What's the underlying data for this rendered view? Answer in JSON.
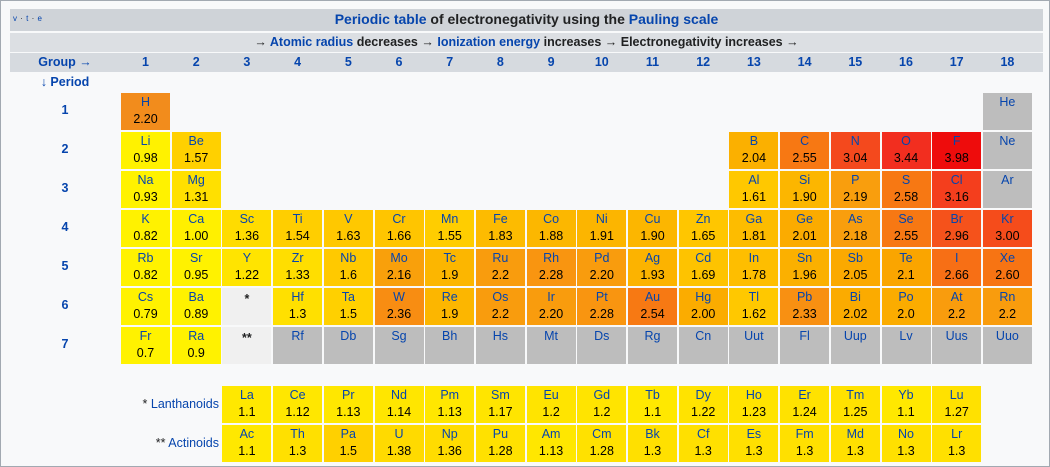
{
  "vte": {
    "v": "v",
    "t": "t",
    "e": "e"
  },
  "title": {
    "link1": "Periodic table",
    "mid": " of electronegativity using the ",
    "link2": "Pauling scale"
  },
  "trend": {
    "arrow1": "→ ",
    "link1": "Atomic radius",
    "t1": " decreases → ",
    "link2": "Ionization energy",
    "t2": " increases → Electronegativity increases →"
  },
  "group_label": "Group →",
  "period_label": "↓ Period",
  "groups": [
    "1",
    "2",
    "3",
    "4",
    "5",
    "6",
    "7",
    "8",
    "9",
    "10",
    "11",
    "12",
    "13",
    "14",
    "15",
    "16",
    "17",
    "18"
  ],
  "periods": [
    "1",
    "2",
    "3",
    "4",
    "5",
    "6",
    "7"
  ],
  "colors": {
    "none": "#b8b8b8",
    "marker": "#f0f0f0"
  },
  "elements": [
    {
      "s": "H",
      "en": "2.20",
      "p": 1,
      "g": 1,
      "c": "#f28c1c"
    },
    {
      "s": "He",
      "en": "",
      "p": 1,
      "g": 18,
      "c": "#bdbdbd"
    },
    {
      "s": "Li",
      "en": "0.98",
      "p": 2,
      "g": 1,
      "c": "#fff200"
    },
    {
      "s": "Be",
      "en": "1.57",
      "p": 2,
      "g": 2,
      "c": "#ffd000"
    },
    {
      "s": "B",
      "en": "2.04",
      "p": 2,
      "g": 13,
      "c": "#fbb000"
    },
    {
      "s": "C",
      "en": "2.55",
      "p": 2,
      "g": 14,
      "c": "#f77813"
    },
    {
      "s": "N",
      "en": "3.04",
      "p": 2,
      "g": 15,
      "c": "#f4491d"
    },
    {
      "s": "O",
      "en": "3.44",
      "p": 2,
      "g": 16,
      "c": "#f22e1f"
    },
    {
      "s": "F",
      "en": "3.98",
      "p": 2,
      "g": 17,
      "c": "#ee0c0c"
    },
    {
      "s": "Ne",
      "en": "",
      "p": 2,
      "g": 18,
      "c": "#bdbdbd"
    },
    {
      "s": "Na",
      "en": "0.93",
      "p": 3,
      "g": 1,
      "c": "#fff200"
    },
    {
      "s": "Mg",
      "en": "1.31",
      "p": 3,
      "g": 2,
      "c": "#ffe000"
    },
    {
      "s": "Al",
      "en": "1.61",
      "p": 3,
      "g": 13,
      "c": "#ffc800"
    },
    {
      "s": "Si",
      "en": "1.90",
      "p": 3,
      "g": 14,
      "c": "#fcb600"
    },
    {
      "s": "P",
      "en": "2.19",
      "p": 3,
      "g": 15,
      "c": "#f99e0d"
    },
    {
      "s": "S",
      "en": "2.58",
      "p": 3,
      "g": 16,
      "c": "#f77813"
    },
    {
      "s": "Cl",
      "en": "3.16",
      "p": 3,
      "g": 17,
      "c": "#f43e1d"
    },
    {
      "s": "Ar",
      "en": "",
      "p": 3,
      "g": 18,
      "c": "#bdbdbd"
    },
    {
      "s": "K",
      "en": "0.82",
      "p": 4,
      "g": 1,
      "c": "#fff200"
    },
    {
      "s": "Ca",
      "en": "1.00",
      "p": 4,
      "g": 2,
      "c": "#fff000"
    },
    {
      "s": "Sc",
      "en": "1.36",
      "p": 4,
      "g": 3,
      "c": "#ffdc00"
    },
    {
      "s": "Ti",
      "en": "1.54",
      "p": 4,
      "g": 4,
      "c": "#ffce00"
    },
    {
      "s": "V",
      "en": "1.63",
      "p": 4,
      "g": 5,
      "c": "#ffc800"
    },
    {
      "s": "Cr",
      "en": "1.66",
      "p": 4,
      "g": 6,
      "c": "#ffc500"
    },
    {
      "s": "Mn",
      "en": "1.55",
      "p": 4,
      "g": 7,
      "c": "#ffcd00"
    },
    {
      "s": "Fe",
      "en": "1.83",
      "p": 4,
      "g": 8,
      "c": "#fdbb00"
    },
    {
      "s": "Co",
      "en": "1.88",
      "p": 4,
      "g": 9,
      "c": "#fcb700"
    },
    {
      "s": "Ni",
      "en": "1.91",
      "p": 4,
      "g": 10,
      "c": "#fcb500"
    },
    {
      "s": "Cu",
      "en": "1.90",
      "p": 4,
      "g": 11,
      "c": "#fcb600"
    },
    {
      "s": "Zn",
      "en": "1.65",
      "p": 4,
      "g": 12,
      "c": "#ffc600"
    },
    {
      "s": "Ga",
      "en": "1.81",
      "p": 4,
      "g": 13,
      "c": "#fdbc00"
    },
    {
      "s": "Ge",
      "en": "2.01",
      "p": 4,
      "g": 14,
      "c": "#fbab00"
    },
    {
      "s": "As",
      "en": "2.18",
      "p": 4,
      "g": 15,
      "c": "#f99e0d"
    },
    {
      "s": "Se",
      "en": "2.55",
      "p": 4,
      "g": 16,
      "c": "#f77813"
    },
    {
      "s": "Br",
      "en": "2.96",
      "p": 4,
      "g": 17,
      "c": "#f5521b"
    },
    {
      "s": "Kr",
      "en": "3.00",
      "p": 4,
      "g": 18,
      "c": "#f54c1b"
    },
    {
      "s": "Rb",
      "en": "0.82",
      "p": 5,
      "g": 1,
      "c": "#fff200"
    },
    {
      "s": "Sr",
      "en": "0.95",
      "p": 5,
      "g": 2,
      "c": "#fff200"
    },
    {
      "s": "Y",
      "en": "1.22",
      "p": 5,
      "g": 3,
      "c": "#ffe400"
    },
    {
      "s": "Zr",
      "en": "1.33",
      "p": 5,
      "g": 4,
      "c": "#ffde00"
    },
    {
      "s": "Nb",
      "en": "1.6",
      "p": 5,
      "g": 5,
      "c": "#ffc900"
    },
    {
      "s": "Mo",
      "en": "2.16",
      "p": 5,
      "g": 6,
      "c": "#f9a00b"
    },
    {
      "s": "Tc",
      "en": "1.9",
      "p": 5,
      "g": 7,
      "c": "#fcb600"
    },
    {
      "s": "Ru",
      "en": "2.2",
      "p": 5,
      "g": 8,
      "c": "#f99c0d"
    },
    {
      "s": "Rh",
      "en": "2.28",
      "p": 5,
      "g": 9,
      "c": "#f99510"
    },
    {
      "s": "Pd",
      "en": "2.20",
      "p": 5,
      "g": 10,
      "c": "#f99c0d"
    },
    {
      "s": "Ag",
      "en": "1.93",
      "p": 5,
      "g": 11,
      "c": "#fcb300"
    },
    {
      "s": "Cd",
      "en": "1.69",
      "p": 5,
      "g": 12,
      "c": "#fec300"
    },
    {
      "s": "In",
      "en": "1.78",
      "p": 5,
      "g": 13,
      "c": "#febe00"
    },
    {
      "s": "Sn",
      "en": "1.96",
      "p": 5,
      "g": 14,
      "c": "#fbb000"
    },
    {
      "s": "Sb",
      "en": "2.05",
      "p": 5,
      "g": 15,
      "c": "#fba900"
    },
    {
      "s": "Te",
      "en": "2.1",
      "p": 5,
      "g": 16,
      "c": "#faa500"
    },
    {
      "s": "I",
      "en": "2.66",
      "p": 5,
      "g": 17,
      "c": "#f76f15"
    },
    {
      "s": "Xe",
      "en": "2.60",
      "p": 5,
      "g": 18,
      "c": "#f77413"
    },
    {
      "s": "Cs",
      "en": "0.79",
      "p": 6,
      "g": 1,
      "c": "#fff200"
    },
    {
      "s": "Ba",
      "en": "0.89",
      "p": 6,
      "g": 2,
      "c": "#fff200"
    },
    {
      "s": "*",
      "en": "",
      "p": 6,
      "g": 3,
      "c": "marker"
    },
    {
      "s": "Hf",
      "en": "1.3",
      "p": 6,
      "g": 4,
      "c": "#ffe000"
    },
    {
      "s": "Ta",
      "en": "1.5",
      "p": 6,
      "g": 5,
      "c": "#ffd000"
    },
    {
      "s": "W",
      "en": "2.36",
      "p": 6,
      "g": 6,
      "c": "#f88d12"
    },
    {
      "s": "Re",
      "en": "1.9",
      "p": 6,
      "g": 7,
      "c": "#fcb600"
    },
    {
      "s": "Os",
      "en": "2.2",
      "p": 6,
      "g": 8,
      "c": "#f99c0d"
    },
    {
      "s": "Ir",
      "en": "2.20",
      "p": 6,
      "g": 9,
      "c": "#f99c0d"
    },
    {
      "s": "Pt",
      "en": "2.28",
      "p": 6,
      "g": 10,
      "c": "#f99510"
    },
    {
      "s": "Au",
      "en": "2.54",
      "p": 6,
      "g": 11,
      "c": "#f77913"
    },
    {
      "s": "Hg",
      "en": "2.00",
      "p": 6,
      "g": 12,
      "c": "#fbac00"
    },
    {
      "s": "Tl",
      "en": "1.62",
      "p": 6,
      "g": 13,
      "c": "#ffc800"
    },
    {
      "s": "Pb",
      "en": "2.33",
      "p": 6,
      "g": 14,
      "c": "#f89012"
    },
    {
      "s": "Bi",
      "en": "2.02",
      "p": 6,
      "g": 15,
      "c": "#fbab00"
    },
    {
      "s": "Po",
      "en": "2.0",
      "p": 6,
      "g": 16,
      "c": "#fbac00"
    },
    {
      "s": "At",
      "en": "2.2",
      "p": 6,
      "g": 17,
      "c": "#f99c0d"
    },
    {
      "s": "Rn",
      "en": "2.2",
      "p": 6,
      "g": 18,
      "c": "#f99c0d"
    },
    {
      "s": "Fr",
      "en": "0.7",
      "p": 7,
      "g": 1,
      "c": "#fff200"
    },
    {
      "s": "Ra",
      "en": "0.9",
      "p": 7,
      "g": 2,
      "c": "#fff200"
    },
    {
      "s": "**",
      "en": "",
      "p": 7,
      "g": 3,
      "c": "marker"
    },
    {
      "s": "Rf",
      "en": "",
      "p": 7,
      "g": 4,
      "c": "#bdbdbd"
    },
    {
      "s": "Db",
      "en": "",
      "p": 7,
      "g": 5,
      "c": "#bdbdbd"
    },
    {
      "s": "Sg",
      "en": "",
      "p": 7,
      "g": 6,
      "c": "#bdbdbd"
    },
    {
      "s": "Bh",
      "en": "",
      "p": 7,
      "g": 7,
      "c": "#bdbdbd"
    },
    {
      "s": "Hs",
      "en": "",
      "p": 7,
      "g": 8,
      "c": "#bdbdbd"
    },
    {
      "s": "Mt",
      "en": "",
      "p": 7,
      "g": 9,
      "c": "#bdbdbd"
    },
    {
      "s": "Ds",
      "en": "",
      "p": 7,
      "g": 10,
      "c": "#bdbdbd"
    },
    {
      "s": "Rg",
      "en": "",
      "p": 7,
      "g": 11,
      "c": "#bdbdbd"
    },
    {
      "s": "Cn",
      "en": "",
      "p": 7,
      "g": 12,
      "c": "#bdbdbd"
    },
    {
      "s": "Uut",
      "en": "",
      "p": 7,
      "g": 13,
      "c": "#bdbdbd"
    },
    {
      "s": "Fl",
      "en": "",
      "p": 7,
      "g": 14,
      "c": "#bdbdbd"
    },
    {
      "s": "Uup",
      "en": "",
      "p": 7,
      "g": 15,
      "c": "#bdbdbd"
    },
    {
      "s": "Lv",
      "en": "",
      "p": 7,
      "g": 16,
      "c": "#bdbdbd"
    },
    {
      "s": "Uus",
      "en": "",
      "p": 7,
      "g": 17,
      "c": "#bdbdbd"
    },
    {
      "s": "Uuo",
      "en": "",
      "p": 7,
      "g": 18,
      "c": "#bdbdbd"
    }
  ],
  "f_series": [
    {
      "star": "* ",
      "name": "Lanthanoids",
      "items": [
        {
          "s": "La",
          "en": "1.1",
          "c": "#ffe800"
        },
        {
          "s": "Ce",
          "en": "1.12",
          "c": "#ffe700"
        },
        {
          "s": "Pr",
          "en": "1.13",
          "c": "#ffe700"
        },
        {
          "s": "Nd",
          "en": "1.14",
          "c": "#ffe600"
        },
        {
          "s": "Pm",
          "en": "1.13",
          "c": "#ffe700"
        },
        {
          "s": "Sm",
          "en": "1.17",
          "c": "#ffe500"
        },
        {
          "s": "Eu",
          "en": "1.2",
          "c": "#ffe400"
        },
        {
          "s": "Gd",
          "en": "1.2",
          "c": "#ffe400"
        },
        {
          "s": "Tb",
          "en": "1.1",
          "c": "#ffe800"
        },
        {
          "s": "Dy",
          "en": "1.22",
          "c": "#ffe300"
        },
        {
          "s": "Ho",
          "en": "1.23",
          "c": "#ffe300"
        },
        {
          "s": "Er",
          "en": "1.24",
          "c": "#ffe200"
        },
        {
          "s": "Tm",
          "en": "1.25",
          "c": "#ffe200"
        },
        {
          "s": "Yb",
          "en": "1.1",
          "c": "#ffe800"
        },
        {
          "s": "Lu",
          "en": "1.27",
          "c": "#ffe100"
        }
      ]
    },
    {
      "star": "** ",
      "name": "Actinoids",
      "items": [
        {
          "s": "Ac",
          "en": "1.1",
          "c": "#ffe800"
        },
        {
          "s": "Th",
          "en": "1.3",
          "c": "#ffe000"
        },
        {
          "s": "Pa",
          "en": "1.5",
          "c": "#ffd000"
        },
        {
          "s": "U",
          "en": "1.38",
          "c": "#ffda00"
        },
        {
          "s": "Np",
          "en": "1.36",
          "c": "#ffdc00"
        },
        {
          "s": "Pu",
          "en": "1.28",
          "c": "#ffe100"
        },
        {
          "s": "Am",
          "en": "1.13",
          "c": "#ffe700"
        },
        {
          "s": "Cm",
          "en": "1.28",
          "c": "#ffe100"
        },
        {
          "s": "Bk",
          "en": "1.3",
          "c": "#ffe000"
        },
        {
          "s": "Cf",
          "en": "1.3",
          "c": "#ffe000"
        },
        {
          "s": "Es",
          "en": "1.3",
          "c": "#ffe000"
        },
        {
          "s": "Fm",
          "en": "1.3",
          "c": "#ffe000"
        },
        {
          "s": "Md",
          "en": "1.3",
          "c": "#ffe000"
        },
        {
          "s": "No",
          "en": "1.3",
          "c": "#ffe000"
        },
        {
          "s": "Lr",
          "en": "1.3",
          "c": "#ffe000"
        }
      ]
    }
  ]
}
